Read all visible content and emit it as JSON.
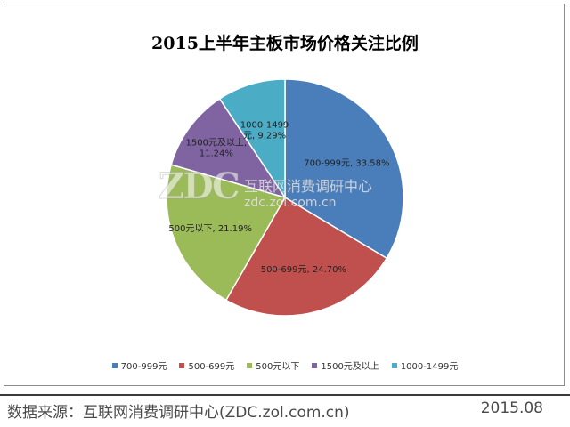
{
  "chart_data": {
    "type": "pie",
    "title": "2015上半年主板市场价格关注比例",
    "categories": [
      "700-999元",
      "500-699元",
      "500元以下",
      "1500元及以上",
      "1000-1499元"
    ],
    "values": [
      33.58,
      24.7,
      21.19,
      11.24,
      9.29
    ],
    "data_labels": [
      [
        "700-999元, 33.58%"
      ],
      [
        "500-699元, 24.70%"
      ],
      [
        "500元以下, 21.19%"
      ],
      [
        "1500元及以上,",
        "11.24%"
      ],
      [
        "1000-1499",
        "元, 9.29%"
      ]
    ],
    "colors": [
      "#4a7ebb",
      "#c0504d",
      "#9bbb59",
      "#8064a2",
      "#4bacc6"
    ],
    "start_angle": "12 o'clock",
    "direction": "clockwise",
    "legend": "bottom"
  },
  "watermark": {
    "logo": "ZDC",
    "name": "互联网消费调研中心",
    "site": "zdc.zol.com.cn"
  },
  "footer": {
    "source": "数据来源：互联网消费调研中心(ZDC.zol.com.cn)",
    "date": "2015.08"
  }
}
